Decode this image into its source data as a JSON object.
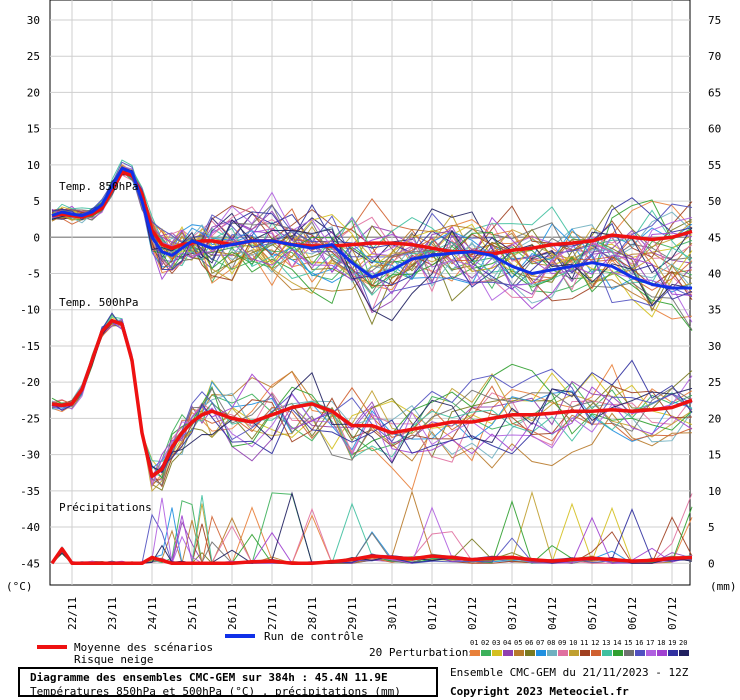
{
  "chart_data": {
    "type": "line",
    "title": "Diagramme des ensembles CMC-GEM sur 384h : 45.4N 11.9E",
    "subtitle": "Températures 850hPa et 500hPa (°C) , précipitations (mm)",
    "left_axis": {
      "unit": "(°C)",
      "ticks": [
        30,
        25,
        20,
        15,
        10,
        5,
        0,
        -5,
        -10,
        -15,
        -20,
        -25,
        -30,
        -35,
        -40,
        -45
      ],
      "ylim": [
        -48,
        30
      ]
    },
    "right_axis": {
      "unit": "(mm)",
      "ticks": [
        75,
        70,
        65,
        60,
        55,
        50,
        45,
        40,
        35,
        30,
        25,
        20,
        15,
        10,
        5,
        0
      ]
    },
    "x_ticks": [
      "22/11",
      "23/11",
      "24/11",
      "25/11",
      "26/11",
      "27/11",
      "28/11",
      "29/11",
      "30/11",
      "01/12",
      "02/12",
      "03/12",
      "04/12",
      "05/12",
      "06/12",
      "07/12"
    ],
    "grid": true,
    "panel_labels": {
      "t850": "Temp. 850hPa",
      "t500": "Temp. 500hPa",
      "precip": "Précipitations"
    },
    "x_days": [
      0,
      0.25,
      0.5,
      0.75,
      1,
      1.25,
      1.5,
      1.75,
      2,
      2.25,
      2.5,
      2.75,
      3,
      3.25,
      3.5,
      3.75,
      4,
      4.5,
      5,
      5.5,
      6,
      6.5,
      7,
      7.5,
      8,
      8.5,
      9,
      9.5,
      10,
      10.5,
      11,
      11.5,
      12,
      12.5,
      13,
      13.5,
      14,
      14.5,
      15,
      15.5,
      16
    ],
    "series": [
      {
        "name": "Moyenne des scénarios",
        "group": "t850",
        "values": [
          3,
          3.2,
          3,
          2.8,
          3.2,
          4,
          6.5,
          9,
          8.5,
          6,
          1,
          -1,
          -1.5,
          -1,
          -0.8,
          -0.5,
          -0.5,
          -1,
          -0.5,
          -0.5,
          -1,
          -1.2,
          -1.2,
          -1,
          -0.8,
          -0.8,
          -1,
          -1.5,
          -2,
          -2,
          -2.3,
          -1.8,
          -1.5,
          -1,
          -0.8,
          -0.5,
          0.3,
          0,
          -0.3,
          0,
          0.8
        ]
      },
      {
        "name": "Run de contrôle",
        "group": "t850",
        "values": [
          3,
          3.5,
          3.2,
          3,
          3.5,
          4.5,
          7,
          9.5,
          9,
          5,
          0,
          -2,
          -2.5,
          -1.5,
          -0.5,
          -1,
          -1.5,
          -1,
          -0.5,
          -0.5,
          -1,
          -1.5,
          -1,
          -3.5,
          -5.5,
          -4.5,
          -3,
          -2.5,
          -2.2,
          -2,
          -2.5,
          -4,
          -5,
          -4.5,
          -4,
          -3.5,
          -4,
          -5.5,
          -6.5,
          -7,
          -7
        ]
      },
      {
        "name": "Moyenne des scénarios",
        "group": "t500",
        "values": [
          -23,
          -23.2,
          -23,
          -21,
          -17,
          -13,
          -11.5,
          -12,
          -17,
          -27,
          -33,
          -32,
          -29,
          -27,
          -25.5,
          -24.5,
          -24,
          -25,
          -25.5,
          -24.5,
          -23.5,
          -23,
          -24,
          -26,
          -26,
          -27,
          -26.5,
          -26,
          -25.5,
          -25.5,
          -25,
          -24.5,
          -24.5,
          -24.3,
          -24,
          -24,
          -23.8,
          -24,
          -23.8,
          -23.5,
          -22.5
        ]
      },
      {
        "name": "Moyenne des scénarios",
        "group": "precip",
        "values": [
          0,
          2,
          0,
          0,
          0,
          0,
          0,
          0,
          0,
          0,
          0.8,
          0.4,
          0,
          0,
          0,
          0,
          0,
          0,
          0.2,
          0.3,
          0,
          0,
          0.2,
          0.5,
          1,
          0.8,
          0.6,
          1,
          0.8,
          0.5,
          0.7,
          0.8,
          0.5,
          0.3,
          0.5,
          0.7,
          0.5,
          0.3,
          0.4,
          0.7,
          0.8
        ]
      }
    ],
    "legend": {
      "mean": "Moyenne des scénarios",
      "snow": "Risque neige",
      "control": "Run de contrôle",
      "perturbations": "20 Perturbations",
      "perturbation_ids": [
        "01",
        "02",
        "03",
        "04",
        "05",
        "06",
        "07",
        "08",
        "09",
        "10",
        "11",
        "12",
        "13",
        "14",
        "15",
        "16",
        "17",
        "18",
        "19",
        "20"
      ]
    },
    "colors": {
      "mean": "#ee1111",
      "control": "#1030e8",
      "perturbations": [
        "#e8803a",
        "#3cb05a",
        "#d4c020",
        "#9040b0",
        "#b87a2a",
        "#7a7a20",
        "#2090e0",
        "#70b0c0",
        "#e070a0",
        "#c0a030",
        "#a04020",
        "#d06030",
        "#40c0a0",
        "#30a030",
        "#707070",
        "#5050c0",
        "#b060e0",
        "#a040d0",
        "#3030a0",
        "#202060"
      ]
    }
  },
  "footer": {
    "title": "Diagramme des ensembles CMC-GEM sur 384h : 45.4N 11.9E",
    "subtitle": "Températures 850hPa et 500hPa (°C) , précipitations (mm)",
    "run": "Ensemble CMC-GEM du 21/11/2023 - 12Z",
    "copyright": "Copyright 2023 Meteociel.fr"
  }
}
